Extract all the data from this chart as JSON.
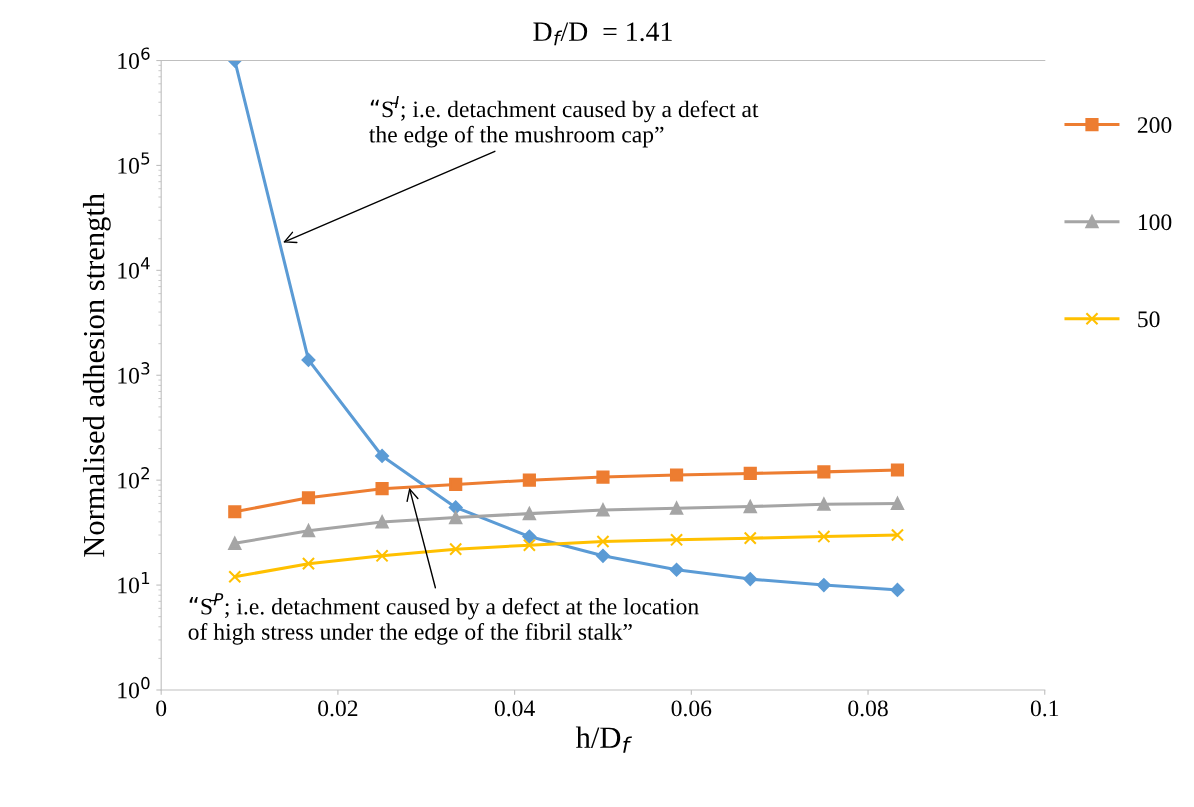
{
  "chart_data": {
    "type": "line",
    "title": "D$_{f}$/D  = 1.41",
    "xlabel": "h/D$_{f}$",
    "ylabel": "Normalised adhesion strength",
    "x": [
      0.00833,
      0.01667,
      0.025,
      0.03333,
      0.04167,
      0.05,
      0.05833,
      0.06667,
      0.075,
      0.08333
    ],
    "series": [
      {
        "color": "#5b9bd5",
        "marker": "diamond",
        "values": [
          1000000,
          1400,
          170,
          55,
          29,
          19,
          14,
          11.4,
          10,
          9
        ]
      },
      {
        "name": "200",
        "color": "#ed7d31",
        "marker": "square",
        "values": [
          50,
          68,
          83,
          91,
          100,
          107,
          112,
          116,
          120,
          125
        ]
      },
      {
        "name": "100",
        "color": "#a5a5a5",
        "marker": "triangle",
        "values": [
          25,
          33,
          40,
          44,
          48,
          52,
          54,
          56,
          59,
          60
        ]
      },
      {
        "name": "50",
        "color": "#ffc000",
        "marker": "cross",
        "values": [
          12,
          16,
          19,
          22,
          24,
          26,
          27,
          28,
          29,
          30
        ]
      }
    ],
    "log": "y",
    "xlim": [
      0,
      0.1
    ],
    "xticks": [
      0,
      0.02,
      0.04,
      0.06,
      0.08,
      0.1
    ],
    "ylim": [
      1,
      1000000
    ],
    "yticks": [
      {
        "value": 1,
        "label": "10$^{0}$"
      },
      {
        "value": 10,
        "label": "10$^{1}$"
      },
      {
        "value": 100,
        "label": "10$^{2}$"
      },
      {
        "value": 1000,
        "label": "10$^{3}$"
      },
      {
        "value": 10000,
        "label": "10$^{4}$"
      },
      {
        "value": 100000,
        "label": "10$^{5}$"
      },
      {
        "value": 1000000,
        "label": "10$^{6}$"
      }
    ],
    "grid": false,
    "legend": "right",
    "line_style": "solid",
    "annotations": [
      {
        "text": "“S̄$^{I}$; i.e. detachment caused by a defect at\nthe edge of the mushroom cap”",
        "x": 0.0135,
        "y": 18000
      },
      {
        "text": "“S̄$^{P}$; i.e. detachment caused by a defect at the location\nof high stress under the edge of the fibril stalk”",
        "x": 0.028,
        "y": 90
      }
    ]
  }
}
